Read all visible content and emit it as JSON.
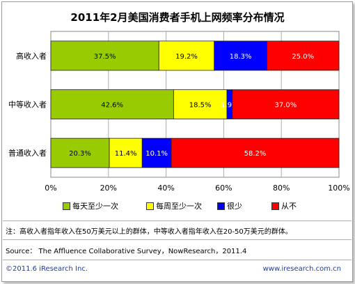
{
  "chart_data": {
    "type": "bar",
    "orientation": "horizontal",
    "stacked": true,
    "percent_stacked": true,
    "title": "2011年2月美国消费者手机上网频率分布情况",
    "categories": [
      "高收入者",
      "中等收入者",
      "普通收入者"
    ],
    "series": [
      {
        "name": "每天至少一次",
        "color": "#99cc00",
        "values": [
          37.5,
          42.6,
          20.3
        ],
        "labels": [
          "37.5%",
          "42.6%",
          "20.3%"
        ]
      },
      {
        "name": "每周至少一次",
        "color": "#ffff00",
        "values": [
          19.2,
          18.5,
          11.4
        ],
        "labels": [
          "19.2%",
          "18.5%",
          "11.4%"
        ]
      },
      {
        "name": "很少",
        "color": "#0000ff",
        "values": [
          18.3,
          1.9,
          10.1
        ],
        "labels": [
          "18.3%",
          "1.9%",
          "10.1%"
        ]
      },
      {
        "name": "从不",
        "color": "#ff0000",
        "values": [
          25.0,
          37.0,
          58.2
        ],
        "labels": [
          "25.0%",
          "37.0%",
          "58.2%"
        ]
      }
    ],
    "xlim": [
      0,
      100
    ],
    "xticks": [
      "0%",
      "20%",
      "40%",
      "60%",
      "80%",
      "100%"
    ],
    "xtick_values": [
      0,
      20,
      40,
      60,
      80,
      100
    ],
    "grid": true,
    "legend_position": "bottom"
  },
  "footer": {
    "note": "注：高收入者指年收入在50万美元以上的群体，中等收入者指年收入在20-50万美元的群体。",
    "source": "Source： The Affluence Collaborative Survey，NowResearch，2011.4",
    "copyright": "©2011.6 iResearch Inc.",
    "website": "www.iresearch.com.cn"
  }
}
